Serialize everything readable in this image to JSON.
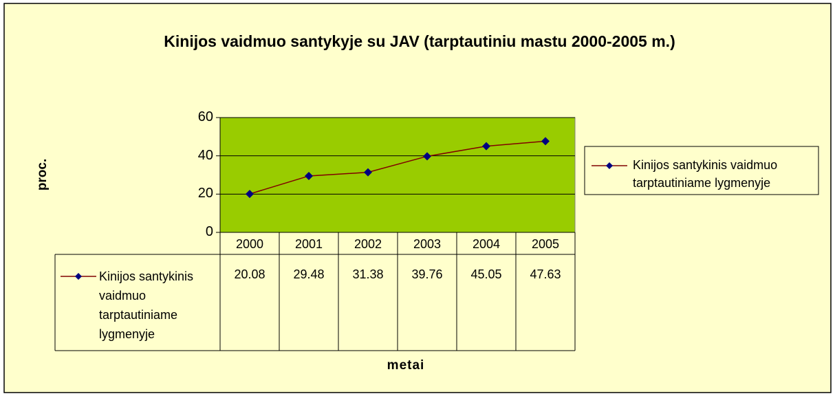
{
  "chart_data": {
    "type": "line",
    "title": "Kinijos vaidmuo santykyje su JAV (tarptautiniu mastu 2000-2005 m.)",
    "xlabel": "metai",
    "ylabel": "proc.",
    "categories": [
      "2000",
      "2001",
      "2002",
      "2003",
      "2004",
      "2005"
    ],
    "series": [
      {
        "name": "Kinijos santykinis vaidmuo tarptautiniame lygmenyje",
        "color": "#800000",
        "marker_color": "#000080",
        "values": [
          20.08,
          29.48,
          31.38,
          39.76,
          45.05,
          47.63
        ]
      }
    ],
    "ylim": [
      0,
      60
    ],
    "yticks": [
      0,
      20,
      40,
      60
    ],
    "grid": true,
    "legend": "right",
    "data_table": true,
    "plot_color": "#99cc00",
    "background": "#ffffcc"
  }
}
